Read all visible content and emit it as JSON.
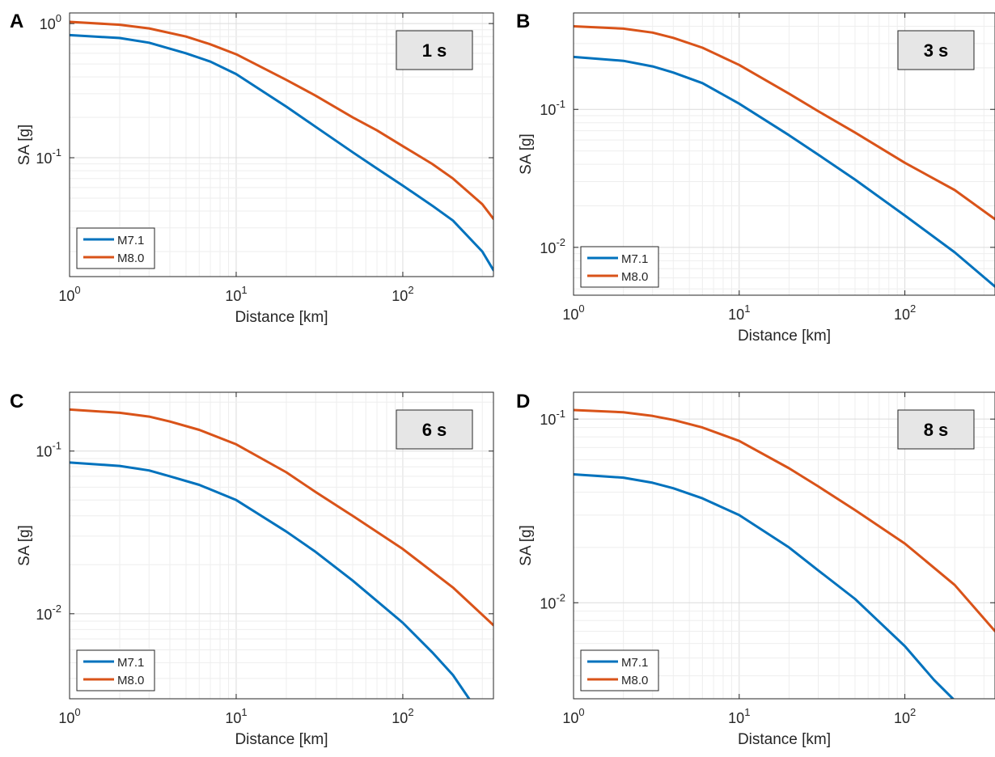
{
  "chart_data": [
    {
      "type": "line",
      "panel_label": "A",
      "period_box": "1 s",
      "xlabel": "Distance [km]",
      "ylabel": "SA [g]",
      "xscale": "log",
      "yscale": "log",
      "xlim": [
        1,
        350
      ],
      "ylim": [
        0.013,
        1.2
      ],
      "xticks": [
        {
          "v": 1,
          "b": "10",
          "e": "0"
        },
        {
          "v": 10,
          "b": "10",
          "e": "1"
        },
        {
          "v": 100,
          "b": "10",
          "e": "2"
        }
      ],
      "yticks": [
        {
          "v": 0.1,
          "b": "10",
          "e": "-1"
        },
        {
          "v": 1,
          "b": "10",
          "e": "0"
        }
      ],
      "grid": true,
      "legend_position": "bottom-left",
      "series": [
        {
          "name": "M7.1",
          "color": "#0072BD",
          "x": [
            1,
            2,
            3,
            5,
            7,
            10,
            20,
            30,
            50,
            70,
            100,
            150,
            200,
            300,
            350
          ],
          "y": [
            0.82,
            0.78,
            0.72,
            0.6,
            0.52,
            0.42,
            0.24,
            0.17,
            0.11,
            0.083,
            0.062,
            0.044,
            0.034,
            0.02,
            0.0145
          ]
        },
        {
          "name": "M8.0",
          "color": "#D95319",
          "x": [
            1,
            2,
            3,
            5,
            7,
            10,
            20,
            30,
            50,
            70,
            100,
            150,
            200,
            300,
            350
          ],
          "y": [
            1.03,
            0.98,
            0.92,
            0.8,
            0.7,
            0.59,
            0.38,
            0.29,
            0.2,
            0.16,
            0.122,
            0.09,
            0.07,
            0.045,
            0.035
          ]
        }
      ]
    },
    {
      "type": "line",
      "panel_label": "B",
      "period_box": "3 s",
      "xlabel": "Distance [km]",
      "ylabel": "SA [g]",
      "xscale": "log",
      "yscale": "log",
      "xlim": [
        1,
        350
      ],
      "ylim": [
        0.0045,
        0.5
      ],
      "xticks": [
        {
          "v": 1,
          "b": "10",
          "e": "0"
        },
        {
          "v": 10,
          "b": "10",
          "e": "1"
        },
        {
          "v": 100,
          "b": "10",
          "e": "2"
        }
      ],
      "yticks": [
        {
          "v": 0.01,
          "b": "10",
          "e": "-2"
        },
        {
          "v": 0.1,
          "b": "10",
          "e": "-1"
        }
      ],
      "grid": true,
      "legend_position": "bottom-left",
      "series": [
        {
          "name": "M7.1",
          "color": "#0072BD",
          "x": [
            1,
            2,
            3,
            4,
            6,
            10,
            20,
            30,
            50,
            100,
            200,
            350
          ],
          "y": [
            0.24,
            0.225,
            0.205,
            0.185,
            0.155,
            0.11,
            0.065,
            0.047,
            0.031,
            0.017,
            0.0092,
            0.0052
          ]
        },
        {
          "name": "M8.0",
          "color": "#D95319",
          "x": [
            1,
            2,
            3,
            4,
            6,
            10,
            20,
            30,
            50,
            100,
            200,
            350
          ],
          "y": [
            0.4,
            0.385,
            0.36,
            0.33,
            0.28,
            0.21,
            0.13,
            0.097,
            0.068,
            0.041,
            0.026,
            0.016
          ]
        }
      ]
    },
    {
      "type": "line",
      "panel_label": "C",
      "period_box": "6 s",
      "xlabel": "Distance [km]",
      "ylabel": "SA [g]",
      "xscale": "log",
      "yscale": "log",
      "xlim": [
        1,
        350
      ],
      "ylim": [
        0.003,
        0.23
      ],
      "xticks": [
        {
          "v": 1,
          "b": "10",
          "e": "0"
        },
        {
          "v": 10,
          "b": "10",
          "e": "1"
        },
        {
          "v": 100,
          "b": "10",
          "e": "2"
        }
      ],
      "yticks": [
        {
          "v": 0.01,
          "b": "10",
          "e": "-2"
        },
        {
          "v": 0.1,
          "b": "10",
          "e": "-1"
        }
      ],
      "grid": true,
      "legend_position": "bottom-left",
      "series": [
        {
          "name": "M7.1",
          "color": "#0072BD",
          "x": [
            1,
            2,
            3,
            4,
            6,
            10,
            20,
            30,
            50,
            100,
            150,
            200,
            250
          ],
          "y": [
            0.085,
            0.081,
            0.076,
            0.07,
            0.062,
            0.05,
            0.032,
            0.024,
            0.016,
            0.0088,
            0.0058,
            0.0042,
            0.003
          ]
        },
        {
          "name": "M8.0",
          "color": "#D95319",
          "x": [
            1,
            2,
            3,
            4,
            6,
            10,
            20,
            30,
            50,
            100,
            200,
            350
          ],
          "y": [
            0.18,
            0.172,
            0.163,
            0.152,
            0.135,
            0.11,
            0.074,
            0.056,
            0.04,
            0.025,
            0.0145,
            0.0085
          ]
        }
      ]
    },
    {
      "type": "line",
      "panel_label": "D",
      "period_box": "8 s",
      "xlabel": "Distance [km]",
      "ylabel": "SA [g]",
      "xscale": "log",
      "yscale": "log",
      "xlim": [
        1,
        350
      ],
      "ylim": [
        0.003,
        0.14
      ],
      "xticks": [
        {
          "v": 1,
          "b": "10",
          "e": "0"
        },
        {
          "v": 10,
          "b": "10",
          "e": "1"
        },
        {
          "v": 100,
          "b": "10",
          "e": "2"
        }
      ],
      "yticks": [
        {
          "v": 0.01,
          "b": "10",
          "e": "-2"
        },
        {
          "v": 0.1,
          "b": "10",
          "e": "-1"
        }
      ],
      "grid": true,
      "legend_position": "bottom-left",
      "series": [
        {
          "name": "M7.1",
          "color": "#0072BD",
          "x": [
            1,
            2,
            3,
            4,
            6,
            10,
            20,
            30,
            50,
            100,
            150,
            195
          ],
          "y": [
            0.05,
            0.048,
            0.045,
            0.042,
            0.037,
            0.03,
            0.02,
            0.015,
            0.0105,
            0.0058,
            0.0038,
            0.003
          ]
        },
        {
          "name": "M8.0",
          "color": "#D95319",
          "x": [
            1,
            2,
            3,
            4,
            6,
            10,
            20,
            30,
            50,
            100,
            200,
            350
          ],
          "y": [
            0.112,
            0.109,
            0.104,
            0.099,
            0.09,
            0.076,
            0.054,
            0.043,
            0.032,
            0.021,
            0.0125,
            0.007
          ]
        }
      ]
    }
  ]
}
